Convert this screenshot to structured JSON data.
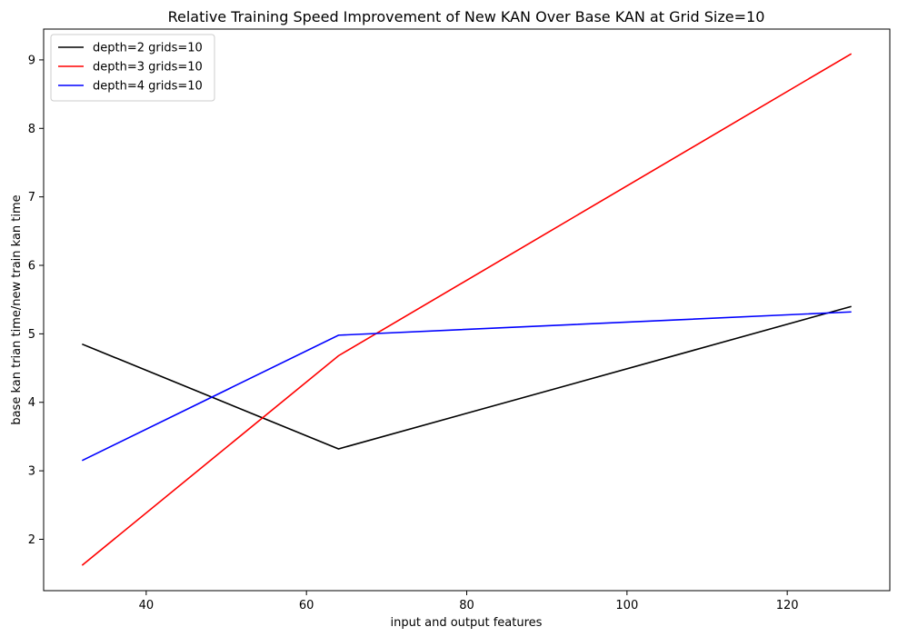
{
  "chart_data": {
    "type": "line",
    "title": "Relative Training Speed Improvement of New KAN Over Base KAN at Grid Size=10",
    "xlabel": "input and output features",
    "ylabel": "base kan trian time/new train kan time",
    "xlim": [
      27.2,
      132.8
    ],
    "ylim": [
      1.25,
      9.45
    ],
    "xticks": [
      40,
      60,
      80,
      100,
      120
    ],
    "yticks": [
      2,
      3,
      4,
      5,
      6,
      7,
      8,
      9
    ],
    "grid": false,
    "legend_position": "upper-left",
    "x": [
      32,
      64,
      128
    ],
    "series": [
      {
        "name": "depth=2 grids=10",
        "color": "#000000",
        "values": [
          4.85,
          3.32,
          5.4
        ]
      },
      {
        "name": "depth=3 grids=10",
        "color": "#ff0000",
        "values": [
          1.62,
          4.68,
          9.09
        ]
      },
      {
        "name": "depth=4 grids=10",
        "color": "#0000ff",
        "values": [
          3.15,
          4.98,
          5.32
        ]
      }
    ]
  }
}
